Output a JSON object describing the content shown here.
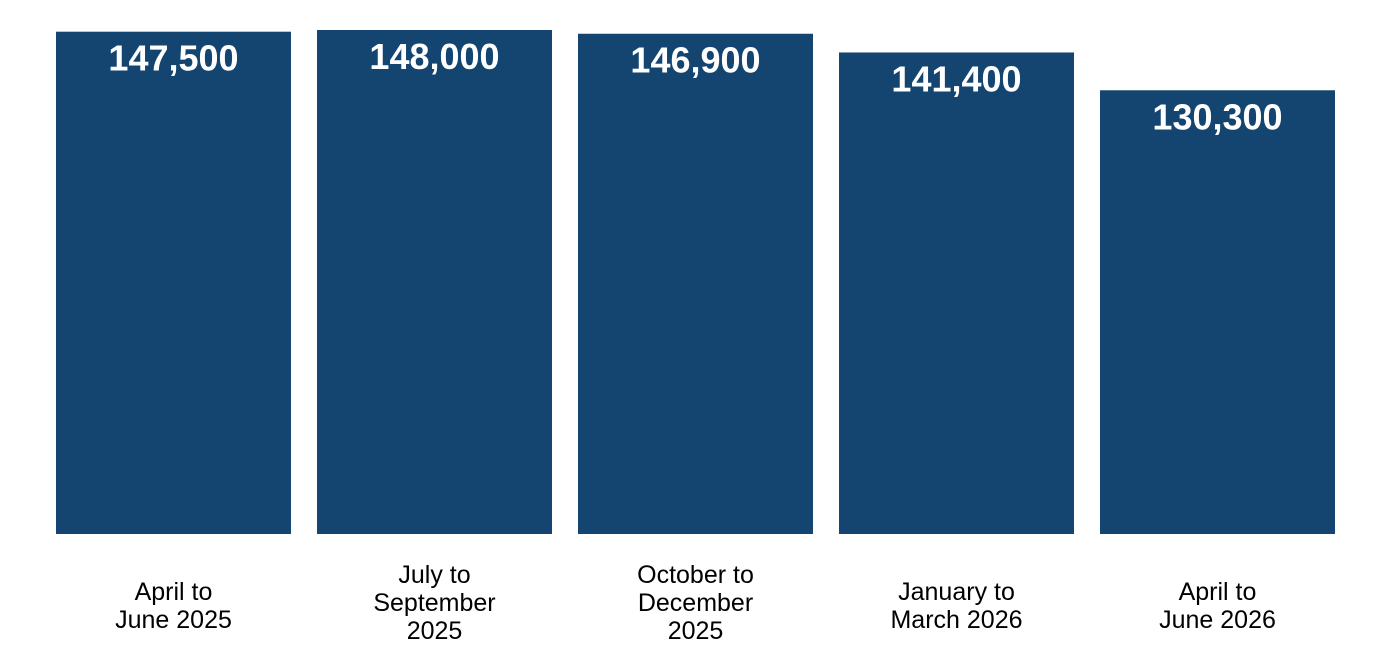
{
  "chart_data": {
    "type": "bar",
    "title": "",
    "xlabel": "",
    "ylabel": "",
    "categories": [
      [
        "April to",
        "June 2025"
      ],
      [
        "July to",
        "September",
        "2025"
      ],
      [
        "October to",
        "December",
        "2025"
      ],
      [
        "January to",
        "March 2026"
      ],
      [
        "April to",
        "June 2026"
      ]
    ],
    "values": [
      147500,
      148000,
      146900,
      141400,
      130300
    ],
    "value_labels": [
      "147,500",
      "148,000",
      "146,900",
      "141,400",
      "130,300"
    ],
    "bar_color": "#144470",
    "ylim": [
      0,
      148000
    ],
    "grid": false,
    "legend": "none"
  }
}
